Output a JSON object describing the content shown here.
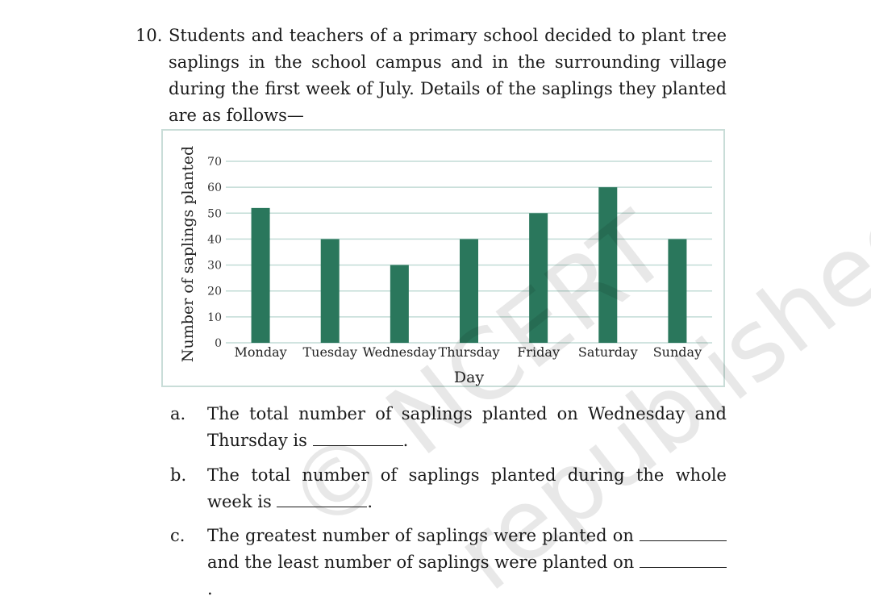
{
  "question": {
    "number": "10.",
    "text": "Students and teachers of a primary school decided to plant tree saplings in the school campus and in the surrounding village during the first week of July. Details of the saplings they planted are as follows—"
  },
  "chart_data": {
    "type": "bar",
    "categories": [
      "Monday",
      "Tuesday",
      "Wednesday",
      "Thursday",
      "Friday",
      "Saturday",
      "Sunday"
    ],
    "values": [
      52,
      40,
      30,
      40,
      50,
      60,
      40
    ],
    "xlabel": "Day",
    "ylabel": "Number of saplings planted",
    "ylim": [
      0,
      70
    ],
    "yticks": [
      0,
      10,
      20,
      30,
      40,
      50,
      60,
      70
    ],
    "bar_color": "#2a775c",
    "grid_color": "#c2dcd6",
    "grid": true
  },
  "subquestions": [
    {
      "letter": "a.",
      "before": "The total number of saplings planted on Wednesday and Thursday is",
      "after": "."
    },
    {
      "letter": "b.",
      "before": "The total number of saplings planted during the whole week is",
      "after": "."
    },
    {
      "letter": "c.",
      "before": "The greatest number of saplings were planted on",
      "middle": "and the least number of saplings were planted on",
      "after": "."
    }
  ],
  "watermark": {
    "line1": "© NCERT",
    "line2": "republished"
  }
}
